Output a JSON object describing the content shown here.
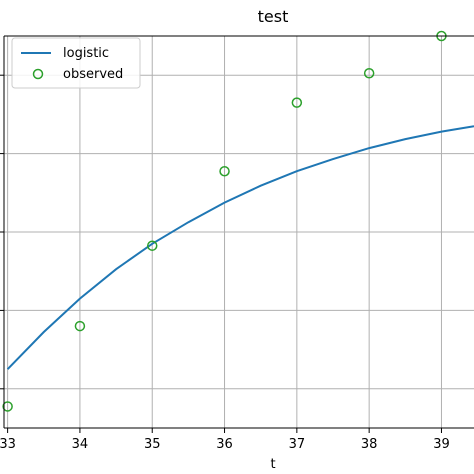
{
  "chart_data": {
    "type": "line",
    "title": "test",
    "xlabel": "t",
    "ylabel": "",
    "xlim": [
      32.95,
      39.45
    ],
    "ylim": [
      0,
      1
    ],
    "x_ticks": [
      33,
      34,
      35,
      36,
      37,
      38,
      39
    ],
    "x_tick_labels": [
      "33",
      "34",
      "35",
      "36",
      "37",
      "38",
      "39"
    ],
    "y_ticks": [
      0.1,
      0.3,
      0.5,
      0.7,
      0.9
    ],
    "grid": true,
    "legend_position": "top-left",
    "series": [
      {
        "name": "logistic",
        "kind": "line",
        "color": "#1f77b4",
        "x": [
          33.0,
          33.5,
          34.0,
          34.5,
          35.0,
          35.5,
          36.0,
          36.5,
          37.0,
          37.5,
          38.0,
          38.5,
          39.0,
          39.45
        ],
        "y": [
          0.15,
          0.245,
          0.33,
          0.405,
          0.47,
          0.525,
          0.575,
          0.618,
          0.655,
          0.686,
          0.714,
          0.737,
          0.756,
          0.77
        ]
      },
      {
        "name": "observed",
        "kind": "scatter",
        "color": "#2ca02c",
        "x": [
          33,
          34,
          35,
          36,
          37,
          38,
          39
        ],
        "y": [
          0.055,
          0.26,
          0.465,
          0.655,
          0.83,
          0.905,
          1.0
        ]
      }
    ]
  }
}
